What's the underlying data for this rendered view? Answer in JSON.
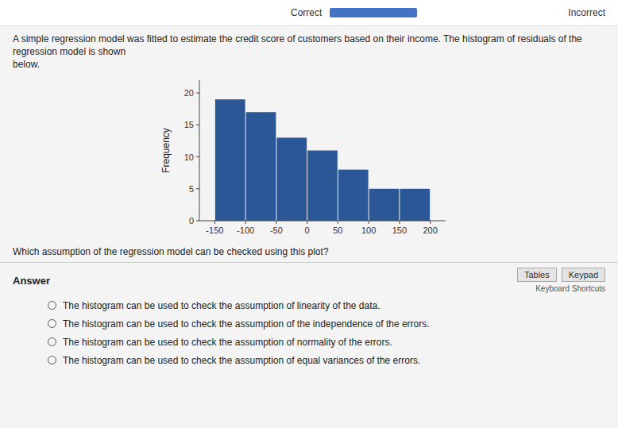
{
  "chart_data": {
    "type": "histogram",
    "ylabel": "Frequency",
    "bins": [
      -150,
      -100,
      -50,
      0,
      50,
      100,
      150,
      200
    ],
    "values": [
      19,
      17,
      13,
      11,
      8,
      5,
      5
    ],
    "color": "#2b5797",
    "xlim": [
      -175,
      225
    ],
    "xticks": [
      -150,
      -100,
      -50,
      0,
      50,
      100,
      150,
      200
    ],
    "ylim": [
      0,
      22
    ],
    "yticks": [
      0,
      5,
      10,
      15,
      20
    ]
  },
  "correct_label": "Correct",
  "incorrect_label": "Incorrect",
  "top_text": "A simple regression model was fitted to estimate the credit score of customers based on their income. The histogram of residuals of the regression model is shown\nbelow.",
  "question_text": "Which assumption of the regression model can be checked using this plot?",
  "answer_label": "Answer",
  "tables_label": "Tables",
  "keypad_label": "Keypad",
  "shortcuts_label": "Keyboard Shortcuts",
  "choices": [
    "The histogram can be used to check the assumption of linearity of the data.",
    "The histogram can be used to check the assumption of the independence of the errors.",
    "The histogram can be used to check the assumption of normality of the errors.",
    "The histogram can be used to check the assumption of equal variances of the errors."
  ]
}
